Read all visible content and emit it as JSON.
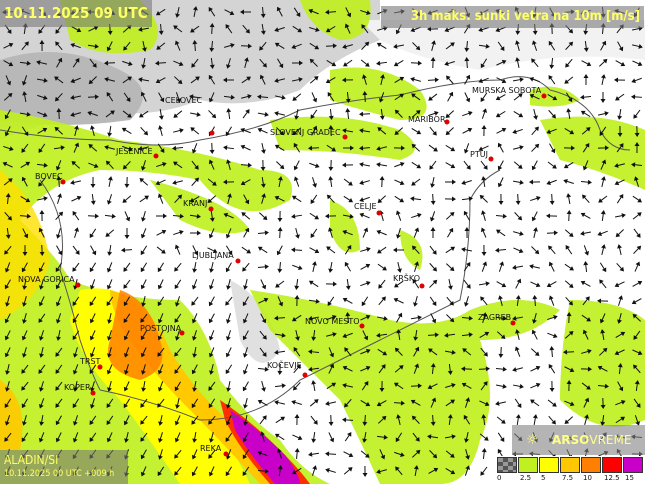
{
  "header": {
    "datetime": "10.11.2025 09 UTC",
    "title": "3h maks. sunki vetra na 10m [m/s]"
  },
  "model": {
    "name": "ALADIN/SI",
    "run": "10.11.2025 00 UTC +009 h"
  },
  "brand": {
    "part1": "ARSO",
    "part2": "VREME",
    "icon": "lightbulb-icon"
  },
  "legend": {
    "unit": "m/s",
    "colors": [
      "#707070",
      "#c0f020",
      "#ffff00",
      "#ffc800",
      "#ff8000",
      "#ff0000",
      "#c800c8"
    ],
    "labels": [
      "0",
      "2.5",
      "5",
      "7.5",
      "10",
      "12.5",
      "15"
    ]
  },
  "cities": [
    {
      "name": "CELOVEC"
    },
    {
      "name": "SLOVENJ GRADEC"
    },
    {
      "name": "MURSKA SOBOTA"
    },
    {
      "name": "MARIBOR"
    },
    {
      "name": "PTUJ"
    },
    {
      "name": "JESENICE"
    },
    {
      "name": "BOVEC"
    },
    {
      "name": "KRANJ"
    },
    {
      "name": "CELJE"
    },
    {
      "name": "LJUBLJANA"
    },
    {
      "name": "KRŠKO"
    },
    {
      "name": "NOVA GORICA"
    },
    {
      "name": "NOVO MESTO"
    },
    {
      "name": "ZAGREB"
    },
    {
      "name": "POSTOJNA"
    },
    {
      "name": "TRST"
    },
    {
      "name": "KOPER"
    },
    {
      "name": "KOČEVJE"
    },
    {
      "name": "REKA"
    }
  ]
}
